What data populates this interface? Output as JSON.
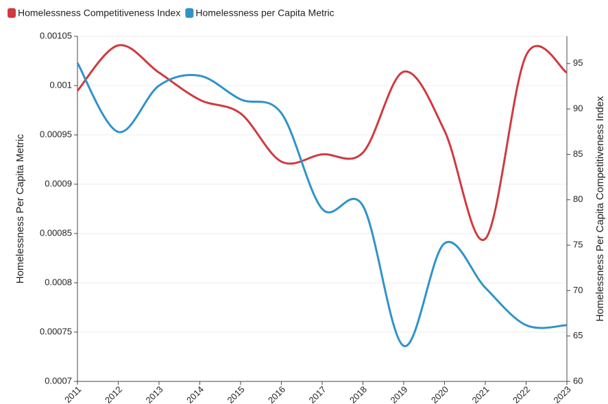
{
  "chart_data": {
    "type": "line",
    "categories": [
      "2011",
      "2012",
      "2013",
      "2014",
      "2015",
      "2016",
      "2017",
      "2018",
      "2019",
      "2020",
      "2021",
      "2022",
      "2023"
    ],
    "series": [
      {
        "name": "Homelessness Competitiveness Index",
        "color": "#d0393f",
        "axis": "y2",
        "values": [
          92,
          97,
          94,
          91,
          89.5,
          84.2,
          85,
          85.2,
          94.1,
          87.6,
          75.7,
          95.9,
          94
        ]
      },
      {
        "name": "Homelessness per Capita Metric",
        "color": "#2e93c9",
        "values": [
          0.001023,
          0.000953,
          0.001,
          0.00101,
          0.000986,
          0.000972,
          0.000875,
          0.000878,
          0.000736,
          0.00084,
          0.000795,
          0.000757,
          0.000757
        ]
      }
    ],
    "ylabel": "Homelessness Per Capita Metric",
    "y2label": "Homelessness Per Capita Competitiveness Index",
    "ylim": [
      0.0007,
      0.00105
    ],
    "yticks": [
      0.0007,
      0.00075,
      0.0008,
      0.00085,
      0.0009,
      0.00095,
      0.001,
      0.00105
    ],
    "y2lim": [
      60,
      98
    ],
    "y2ticks": [
      60,
      65,
      70,
      75,
      80,
      85,
      90,
      95
    ],
    "grid": true,
    "legend": "top-left"
  }
}
